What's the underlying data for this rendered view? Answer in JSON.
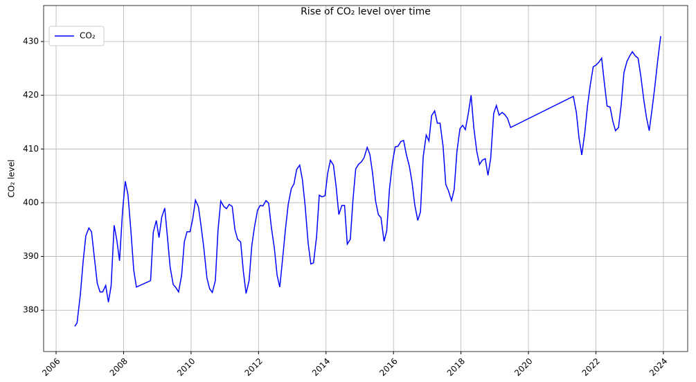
{
  "chart_data": {
    "type": "line",
    "title": "Rise of CO₂ level over time",
    "y_label": "CO₂ level",
    "x": [
      2006.55,
      2006.62,
      2006.72,
      2006.8,
      2006.88,
      2006.97,
      2007.05,
      2007.13,
      2007.22,
      2007.3,
      2007.38,
      2007.47,
      2007.55,
      2007.63,
      2007.72,
      2007.8,
      2007.88,
      2007.97,
      2008.05,
      2008.13,
      2008.22,
      2008.3,
      2008.38,
      2008.8,
      2008.88,
      2008.97,
      2009.05,
      2009.13,
      2009.22,
      2009.3,
      2009.38,
      2009.47,
      2009.55,
      2009.63,
      2009.72,
      2009.8,
      2009.88,
      2009.97,
      2010.05,
      2010.13,
      2010.22,
      2010.3,
      2010.38,
      2010.47,
      2010.55,
      2010.63,
      2010.72,
      2010.8,
      2010.88,
      2010.97,
      2011.05,
      2011.13,
      2011.22,
      2011.3,
      2011.38,
      2011.47,
      2011.55,
      2011.63,
      2011.72,
      2011.8,
      2011.88,
      2011.97,
      2012.05,
      2012.13,
      2012.22,
      2012.3,
      2012.38,
      2012.47,
      2012.55,
      2012.63,
      2012.72,
      2012.8,
      2012.88,
      2012.97,
      2013.05,
      2013.13,
      2013.22,
      2013.3,
      2013.38,
      2013.47,
      2013.55,
      2013.63,
      2013.72,
      2013.8,
      2013.88,
      2013.97,
      2014.05,
      2014.13,
      2014.22,
      2014.3,
      2014.38,
      2014.47,
      2014.55,
      2014.63,
      2014.72,
      2014.8,
      2014.88,
      2014.97,
      2015.05,
      2015.13,
      2015.22,
      2015.3,
      2015.38,
      2015.47,
      2015.55,
      2015.63,
      2015.72,
      2015.8,
      2015.88,
      2015.97,
      2016.05,
      2016.13,
      2016.22,
      2016.3,
      2016.38,
      2016.47,
      2016.55,
      2016.63,
      2016.72,
      2016.8,
      2016.88,
      2016.97,
      2017.05,
      2017.13,
      2017.22,
      2017.3,
      2017.38,
      2017.47,
      2017.55,
      2017.63,
      2017.72,
      2017.8,
      2017.88,
      2017.97,
      2018.05,
      2018.13,
      2018.22,
      2018.3,
      2018.38,
      2018.47,
      2018.55,
      2018.63,
      2018.72,
      2018.8,
      2018.88,
      2018.97,
      2019.05,
      2019.13,
      2019.22,
      2019.3,
      2019.38,
      2019.47,
      2021.33,
      2021.42,
      2021.5,
      2021.58,
      2021.67,
      2021.75,
      2021.83,
      2021.92,
      2022.0,
      2022.08,
      2022.17,
      2022.25,
      2022.33,
      2022.42,
      2022.5,
      2022.58,
      2022.67,
      2022.75,
      2022.83,
      2022.92,
      2023.0,
      2023.08,
      2023.17,
      2023.25,
      2023.33,
      2023.42,
      2023.5,
      2023.58,
      2023.67,
      2023.75,
      2023.83,
      2023.92
    ],
    "series": [
      {
        "name": "CO₂",
        "color": "#0000ff",
        "values": [
          377.0,
          377.6,
          383,
          389,
          393.8,
          395.3,
          394.6,
          390,
          385,
          383.4,
          383.4,
          384.6,
          381.5,
          384.5,
          395.8,
          393,
          389.2,
          398.5,
          404,
          401.5,
          394.5,
          387.5,
          384.3,
          385.5,
          394.5,
          396.7,
          393.5,
          397.3,
          399,
          393.6,
          388,
          384.8,
          384.2,
          383.4,
          386.5,
          392.7,
          394.6,
          394.6,
          397,
          400.5,
          399.2,
          395.5,
          391.5,
          386,
          384,
          383.3,
          385.5,
          395,
          400.3,
          399.3,
          398.9,
          399.7,
          399.3,
          395,
          393.2,
          392.7,
          387.2,
          383.1,
          385.5,
          392,
          395.5,
          398.6,
          399.5,
          399.4,
          400.4,
          399.9,
          395.4,
          391.5,
          386.5,
          384.3,
          390,
          395.2,
          399.7,
          402.6,
          403.5,
          406.2,
          407,
          404.3,
          399.5,
          392.5,
          388.6,
          388.8,
          393.7,
          401.4,
          401.1,
          401.3,
          405.5,
          407.9,
          407,
          403,
          397.8,
          399.5,
          399.5,
          392.3,
          393.2,
          400.6,
          406.3,
          407.2,
          407.6,
          408.4,
          410.3,
          409,
          405.5,
          400.3,
          397.8,
          397.2,
          392.8,
          394.8,
          402.5,
          407.5,
          410.4,
          410.5,
          411.4,
          411.6,
          409,
          406.8,
          403.8,
          399.6,
          396.7,
          398.3,
          408.5,
          412.6,
          411.5,
          416.2,
          417.1,
          414.8,
          414.8,
          410.5,
          403.4,
          402.2,
          400.4,
          402.5,
          409.5,
          413.8,
          414.4,
          413.6,
          416.7,
          420,
          414,
          409.5,
          407.1,
          407.9,
          408.2,
          405.1,
          408.2,
          416.6,
          418.1,
          416.3,
          416.8,
          416.4,
          415.7,
          414,
          419.8,
          416.8,
          412,
          408.9,
          413,
          418,
          421.8,
          425.3,
          425.6,
          426.1,
          426.9,
          422.3,
          418,
          417.8,
          415.2,
          413.4,
          414,
          418.3,
          424.2,
          426.3,
          427.3,
          428.1,
          427.3,
          426.9,
          423.6,
          419.1,
          415.8,
          413.4,
          417.7,
          421.8,
          426.4,
          431
        ]
      }
    ],
    "xlim": [
      2005.63,
      2024.72
    ],
    "xticks": [
      2006,
      2008,
      2010,
      2012,
      2014,
      2016,
      2018,
      2020,
      2022,
      2024
    ],
    "ylim": [
      372.3,
      436.7
    ],
    "yticks": [
      380,
      390,
      400,
      410,
      420,
      430
    ],
    "grid": true,
    "legend": "upper left"
  }
}
